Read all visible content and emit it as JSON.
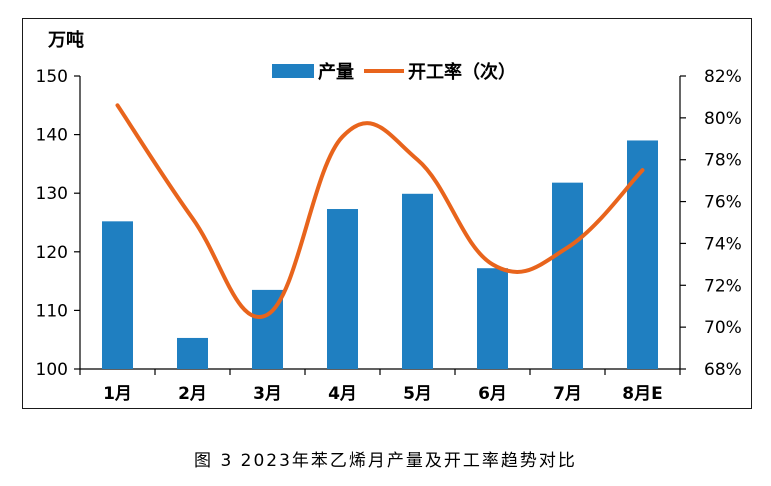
{
  "caption": "图 3 2023年苯乙烯月产量及开工率趋势对比",
  "chart_data": {
    "type": "bar",
    "categories": [
      "1月",
      "2月",
      "3月",
      "4月",
      "5月",
      "6月",
      "7月",
      "8月E"
    ],
    "series": [
      {
        "name": "产量",
        "type": "bar",
        "axis": "left",
        "color": "#1f7fc1",
        "values": [
          125.2,
          105.3,
          113.5,
          127.3,
          129.9,
          117.2,
          131.8,
          139.0
        ]
      },
      {
        "name": "开工率（次）",
        "type": "line",
        "axis": "right",
        "color": "#e8641c",
        "values": [
          80.6,
          75.2,
          70.6,
          79.1,
          78.0,
          73.0,
          73.8,
          77.5
        ]
      }
    ],
    "y_left": {
      "label": "万吨",
      "min": 100,
      "max": 150,
      "ticks": [
        100,
        110,
        120,
        130,
        140,
        150
      ]
    },
    "y_right": {
      "min": 68,
      "max": 82,
      "ticks": [
        "68%",
        "70%",
        "72%",
        "74%",
        "76%",
        "78%",
        "80%",
        "82%"
      ]
    },
    "legend_position": "top",
    "grid": false
  }
}
